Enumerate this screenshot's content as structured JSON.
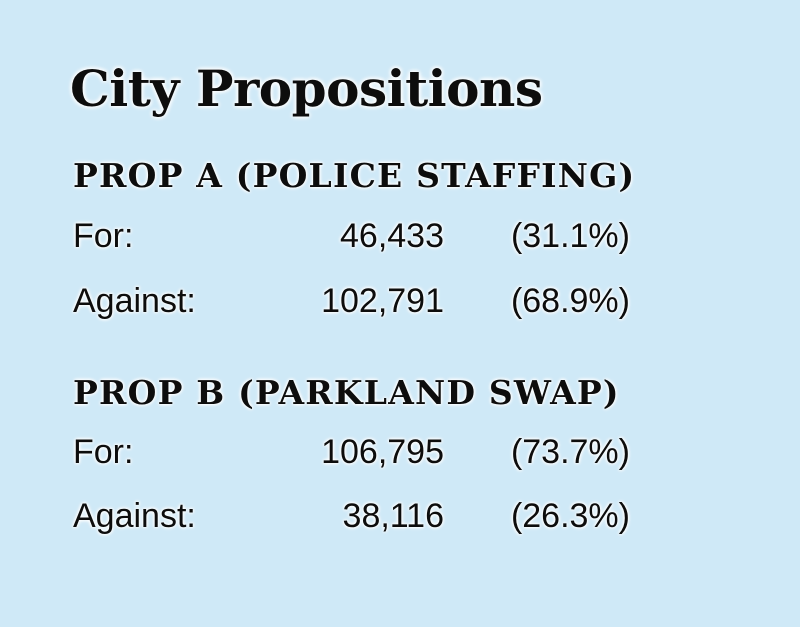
{
  "title": "City Propositions",
  "propositions": [
    {
      "heading": "PROP A (POLICE STAFFING)",
      "rows": [
        {
          "label": "For:",
          "count": "46,433",
          "percent": "(31.1%)"
        },
        {
          "label": "Against:",
          "count": "102,791",
          "percent": "(68.9%)"
        }
      ]
    },
    {
      "heading": "PROP B (PARKLAND SWAP)",
      "rows": [
        {
          "label": "For:",
          "count": "106,795",
          "percent": "(73.7%)"
        },
        {
          "label": "Against:",
          "count": "38,116",
          "percent": "(26.3%)"
        }
      ]
    }
  ],
  "colors": {
    "background": "#cfe9f7",
    "text": "#0d0d0d",
    "outline": "#ffffff"
  }
}
